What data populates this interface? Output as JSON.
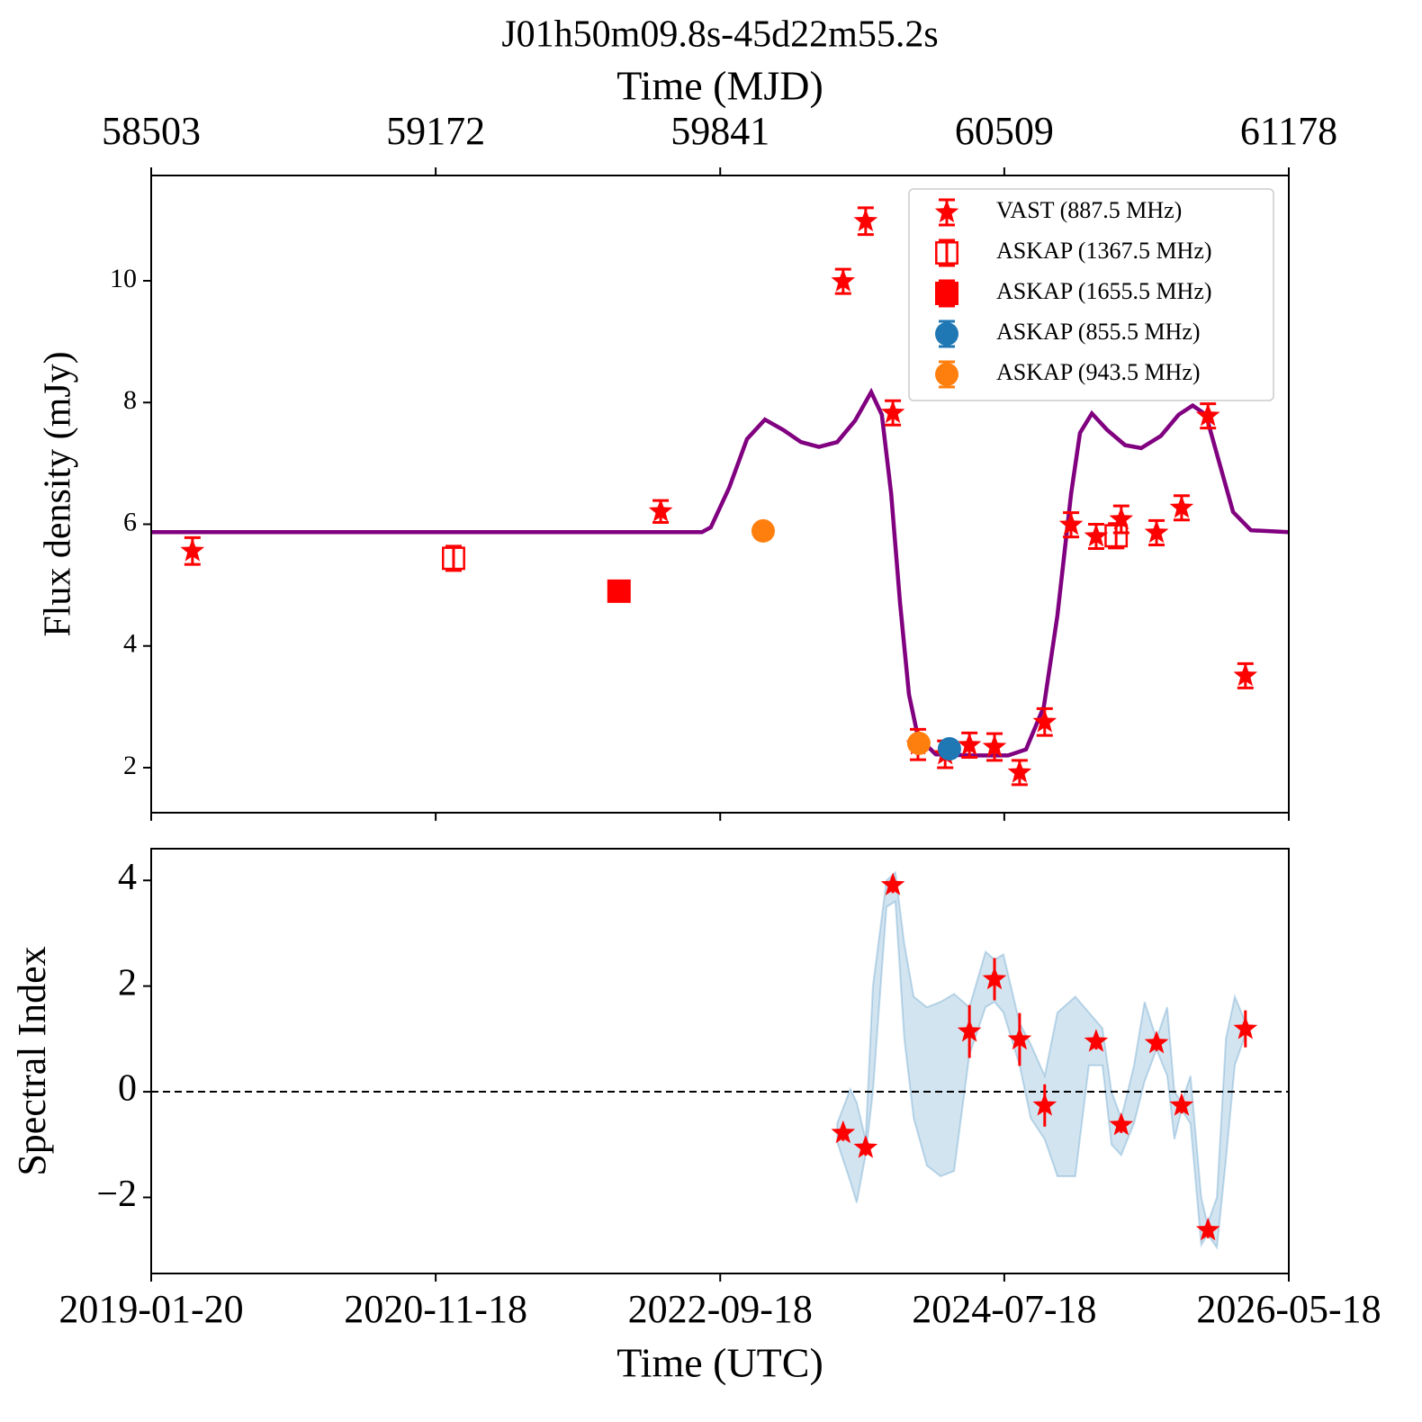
{
  "chart_data": [
    {
      "type": "scatter",
      "title": "J01h50m09.8s-45d22m55.2s",
      "xlabel": "Time (MJD)",
      "ylabel": "Flux density (mJy)",
      "xaxis_position": "top",
      "xlim": [
        58503,
        61178
      ],
      "xticks": [
        58503,
        59172,
        59841,
        60509,
        61178
      ],
      "ylim": [
        1.26,
        11.73
      ],
      "yticks": [
        2,
        4,
        6,
        8,
        10
      ],
      "legend": "upper right",
      "series": [
        {
          "kind": "line",
          "color": "#800080",
          "x": [
            58503,
            59798,
            59819,
            59862,
            59904,
            59946,
            59989,
            60031,
            60073,
            60116,
            60158,
            60196,
            60221,
            60243,
            60264,
            60285,
            60306,
            60348,
            60433,
            60518,
            60560,
            60602,
            60634,
            60666,
            60687,
            60715,
            60751,
            60793,
            60831,
            60877,
            60919,
            60952,
            60983,
            61015,
            61047,
            61089,
            61178
          ],
          "values": [
            5.87,
            5.87,
            5.95,
            6.6,
            7.4,
            7.72,
            7.55,
            7.35,
            7.27,
            7.35,
            7.7,
            8.17,
            7.8,
            6.5,
            4.7,
            3.2,
            2.5,
            2.22,
            2.2,
            2.2,
            2.3,
            3.0,
            4.5,
            6.5,
            7.5,
            7.82,
            7.55,
            7.3,
            7.25,
            7.45,
            7.8,
            7.95,
            7.8,
            7.0,
            6.2,
            5.9,
            5.87
          ]
        },
        {
          "name": "VAST (887.5 MHz)",
          "marker": "star",
          "color": "#ff0000",
          "x": [
            58600,
            59701,
            60130,
            60183,
            60247,
            60306,
            60370,
            60427,
            60486,
            60545,
            60604,
            60666,
            60725,
            60784,
            60867,
            60926,
            60988,
            61076
          ],
          "values": [
            5.56,
            6.21,
            9.99,
            10.98,
            7.83,
            2.38,
            2.22,
            2.37,
            2.34,
            1.92,
            2.75,
            5.99,
            5.8,
            6.08,
            5.86,
            6.27,
            7.78,
            3.51
          ],
          "errors": [
            0.22,
            0.18,
            0.2,
            0.22,
            0.2,
            0.25,
            0.22,
            0.2,
            0.22,
            0.2,
            0.22,
            0.2,
            0.2,
            0.22,
            0.2,
            0.2,
            0.2,
            0.2
          ]
        },
        {
          "name": "ASKAP (1367.5 MHz)",
          "marker": "open-square",
          "color": "#ff0000",
          "x": [
            59214,
            60772
          ],
          "values": [
            5.44,
            5.81
          ],
          "errors": [
            0.2,
            0.2
          ]
        },
        {
          "name": "ASKAP (1655.5 MHz)",
          "marker": "square",
          "color": "#ff0000",
          "x": [
            59603
          ],
          "values": [
            4.9
          ],
          "errors": [
            0.05
          ]
        },
        {
          "name": "ASKAP (855.5 MHz)",
          "marker": "circle",
          "color": "#1f77b4",
          "x": [
            60380
          ],
          "values": [
            2.31
          ],
          "errors": [
            0.08
          ]
        },
        {
          "name": "ASKAP (943.5 MHz)",
          "marker": "circle",
          "color": "#ff7f0e",
          "x": [
            59942,
            60308
          ],
          "values": [
            5.89,
            2.4
          ],
          "errors": [
            0.08,
            0.08
          ]
        }
      ]
    },
    {
      "type": "scatter",
      "xlabel": "Time (UTC)",
      "ylabel": "Spectral Index",
      "xaxis_position": "bottom",
      "xlim": [
        58503,
        61178
      ],
      "xticks": [
        {
          "value": 58503,
          "label": "2019-01-20"
        },
        {
          "value": 59172,
          "label": "2020-11-18"
        },
        {
          "value": 59841,
          "label": "2022-09-18"
        },
        {
          "value": 60509,
          "label": "2024-07-18"
        },
        {
          "value": 61178,
          "label": "2026-05-18"
        }
      ],
      "ylim": [
        -3.44,
        4.6
      ],
      "yticks": [
        {
          "value": -2,
          "label": "−2"
        },
        0,
        2,
        4
      ],
      "hline": 0,
      "band": {
        "color": "#1f77b4",
        "x": [
          60116,
          60147,
          60162,
          60183,
          60200,
          60232,
          60253,
          60274,
          60296,
          60327,
          60359,
          60391,
          60427,
          60465,
          60486,
          60507,
          60545,
          60571,
          60604,
          60634,
          60676,
          60708,
          60740,
          60761,
          60784,
          60814,
          60839,
          60867,
          60892,
          60909,
          60926,
          60947,
          60972,
          60987,
          61009,
          61030,
          61051,
          61077
        ],
        "upper": [
          -0.6,
          0.05,
          -0.2,
          -0.9,
          2.0,
          4.0,
          4.15,
          2.8,
          1.8,
          1.6,
          1.7,
          1.85,
          1.6,
          2.65,
          2.5,
          2.6,
          1.3,
          0.9,
          0.3,
          1.5,
          1.8,
          1.5,
          1.2,
          0.0,
          -0.5,
          0.5,
          1.7,
          1.0,
          1.6,
          0.0,
          -0.2,
          0.3,
          -2.0,
          -2.5,
          -2.0,
          1.0,
          1.8,
          1.3
        ],
        "lower": [
          -0.95,
          -1.7,
          -2.1,
          -1.2,
          0.0,
          3.5,
          3.6,
          1.0,
          -0.5,
          -1.4,
          -1.6,
          -1.5,
          0.7,
          1.6,
          1.7,
          1.5,
          0.5,
          -0.5,
          -0.9,
          -1.6,
          -1.6,
          0.5,
          0.5,
          -1.0,
          -1.2,
          -0.6,
          0.2,
          0.8,
          0.3,
          -0.9,
          -0.35,
          -0.6,
          -2.9,
          -2.7,
          -2.95,
          -1.3,
          0.5,
          1.1
        ]
      },
      "series": [
        {
          "marker": "star",
          "color": "#ff0000",
          "x": [
            60130,
            60183,
            60247,
            60427,
            60486,
            60545,
            60604,
            60725,
            60784,
            60867,
            60926,
            60988,
            61076
          ],
          "values": [
            -0.78,
            -1.06,
            3.91,
            1.14,
            2.13,
            0.99,
            -0.26,
            0.95,
            -0.63,
            0.92,
            -0.26,
            -2.62,
            1.19
          ],
          "errors": [
            0.15,
            0.15,
            0.15,
            0.5,
            0.4,
            0.5,
            0.4,
            0.15,
            0.15,
            0.15,
            0.15,
            0.15,
            0.35
          ]
        }
      ]
    }
  ]
}
